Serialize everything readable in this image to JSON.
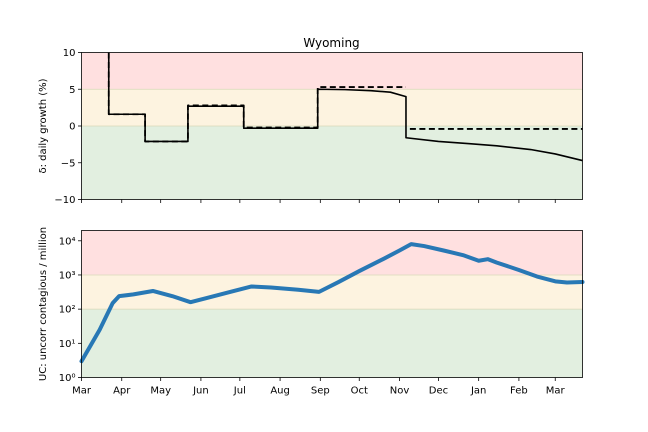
{
  "title": "Wyoming",
  "chart_data": [
    {
      "type": "line",
      "title": "Wyoming",
      "ylabel": "δ: daily growth (%)",
      "ylim": [
        -10,
        10
      ],
      "yticks": [
        "10",
        "5",
        "0",
        "−5",
        "−10"
      ],
      "ytick_values": [
        10,
        5,
        0,
        -5,
        -10
      ],
      "x_range": [
        "2020-03-01",
        "2021-03-22"
      ],
      "bands": [
        {
          "from": 5,
          "to": 10,
          "color": "#ffe0e0"
        },
        {
          "from": 0,
          "to": 5,
          "color": "#fdf3e0"
        },
        {
          "from": -10,
          "to": 0,
          "color": "#e2efe0"
        }
      ],
      "band_lines": [
        5,
        0
      ],
      "series": [
        {
          "style": "solid",
          "color": "#000000",
          "points": [
            [
              "2020-03-22",
              10
            ],
            [
              "2020-03-22",
              1.6
            ],
            [
              "2020-04-19",
              1.6
            ],
            [
              "2020-04-19",
              -2.1
            ],
            [
              "2020-05-22",
              -2.1
            ],
            [
              "2020-05-22",
              2.7
            ],
            [
              "2020-07-04",
              2.7
            ],
            [
              "2020-07-04",
              -0.3
            ],
            [
              "2020-08-30",
              -0.3
            ],
            [
              "2020-08-30",
              5.0
            ],
            [
              "2020-09-20",
              4.95
            ],
            [
              "2020-10-10",
              4.8
            ],
            [
              "2020-10-25",
              4.6
            ],
            [
              "2020-11-06",
              4.0
            ],
            [
              "2020-11-06",
              -1.6
            ],
            [
              "2020-12-01",
              -2.1
            ],
            [
              "2020-12-25",
              -2.4
            ],
            [
              "2021-01-15",
              -2.7
            ],
            [
              "2021-02-10",
              -3.2
            ],
            [
              "2021-03-01",
              -3.8
            ],
            [
              "2021-03-22",
              -4.7
            ]
          ]
        },
        {
          "style": "dashed",
          "color": "#000000",
          "points": [
            [
              "2020-03-22",
              10
            ],
            [
              "2020-03-22",
              1.6
            ],
            [
              "2020-04-19",
              1.6
            ],
            [
              "2020-04-19",
              -2.1
            ],
            [
              "2020-05-22",
              -2.1
            ],
            [
              "2020-05-22",
              2.8
            ],
            [
              "2020-07-04",
              2.8
            ],
            [
              "2020-07-04",
              -0.2
            ],
            [
              "2020-08-30",
              -0.2
            ],
            [
              "2020-08-30",
              5.3
            ],
            [
              "2020-11-06",
              5.3
            ]
          ]
        },
        {
          "style": "dashed",
          "color": "#000000",
          "points": [
            [
              "2020-11-09",
              -0.4
            ],
            [
              "2021-03-22",
              -0.4
            ]
          ]
        }
      ]
    },
    {
      "type": "line",
      "ylabel": "UC: uncorr contagious / million",
      "yscale": "log",
      "ylim": [
        1,
        20000
      ],
      "yticks": [
        "10⁴",
        "10³",
        "10²",
        "10¹",
        "10⁰"
      ],
      "ytick_values": [
        10000,
        1000,
        100,
        10,
        1
      ],
      "x_range": [
        "2020-03-01",
        "2021-03-22"
      ],
      "xticks": [
        "Mar",
        "Apr",
        "May",
        "Jun",
        "Jul",
        "Aug",
        "Sep",
        "Oct",
        "Nov",
        "Dec",
        "Jan",
        "Feb",
        "Mar"
      ],
      "xtick_dates": [
        "2020-03-01",
        "2020-04-01",
        "2020-05-01",
        "2020-06-01",
        "2020-07-01",
        "2020-08-01",
        "2020-09-01",
        "2020-10-01",
        "2020-11-01",
        "2020-12-01",
        "2021-01-01",
        "2021-02-01",
        "2021-03-01"
      ],
      "bands": [
        {
          "from": 1000,
          "to": 20000,
          "color": "#ffe0e0"
        },
        {
          "from": 100,
          "to": 1000,
          "color": "#fdf3e0"
        },
        {
          "from": 1,
          "to": 100,
          "color": "#e2efe0"
        }
      ],
      "band_lines": [
        1000,
        100
      ],
      "series": [
        {
          "style": "solid",
          "color": "#2878b5",
          "points": [
            [
              "2020-03-01",
              3
            ],
            [
              "2020-03-15",
              25
            ],
            [
              "2020-03-25",
              150
            ],
            [
              "2020-03-30",
              240
            ],
            [
              "2020-04-10",
              270
            ],
            [
              "2020-04-25",
              340
            ],
            [
              "2020-05-10",
              240
            ],
            [
              "2020-05-24",
              160
            ],
            [
              "2020-06-05",
              210
            ],
            [
              "2020-06-25",
              330
            ],
            [
              "2020-07-10",
              460
            ],
            [
              "2020-07-25",
              430
            ],
            [
              "2020-08-15",
              370
            ],
            [
              "2020-08-31",
              320
            ],
            [
              "2020-09-15",
              620
            ],
            [
              "2020-10-01",
              1300
            ],
            [
              "2020-10-20",
              3000
            ],
            [
              "2020-11-01",
              5200
            ],
            [
              "2020-11-10",
              8000
            ],
            [
              "2020-11-20",
              7000
            ],
            [
              "2020-12-05",
              5200
            ],
            [
              "2020-12-20",
              3800
            ],
            [
              "2021-01-01",
              2600
            ],
            [
              "2021-01-08",
              2900
            ],
            [
              "2021-01-15",
              2300
            ],
            [
              "2021-02-01",
              1400
            ],
            [
              "2021-02-15",
              900
            ],
            [
              "2021-03-01",
              650
            ],
            [
              "2021-03-10",
              600
            ],
            [
              "2021-03-22",
              620
            ]
          ]
        }
      ]
    }
  ]
}
